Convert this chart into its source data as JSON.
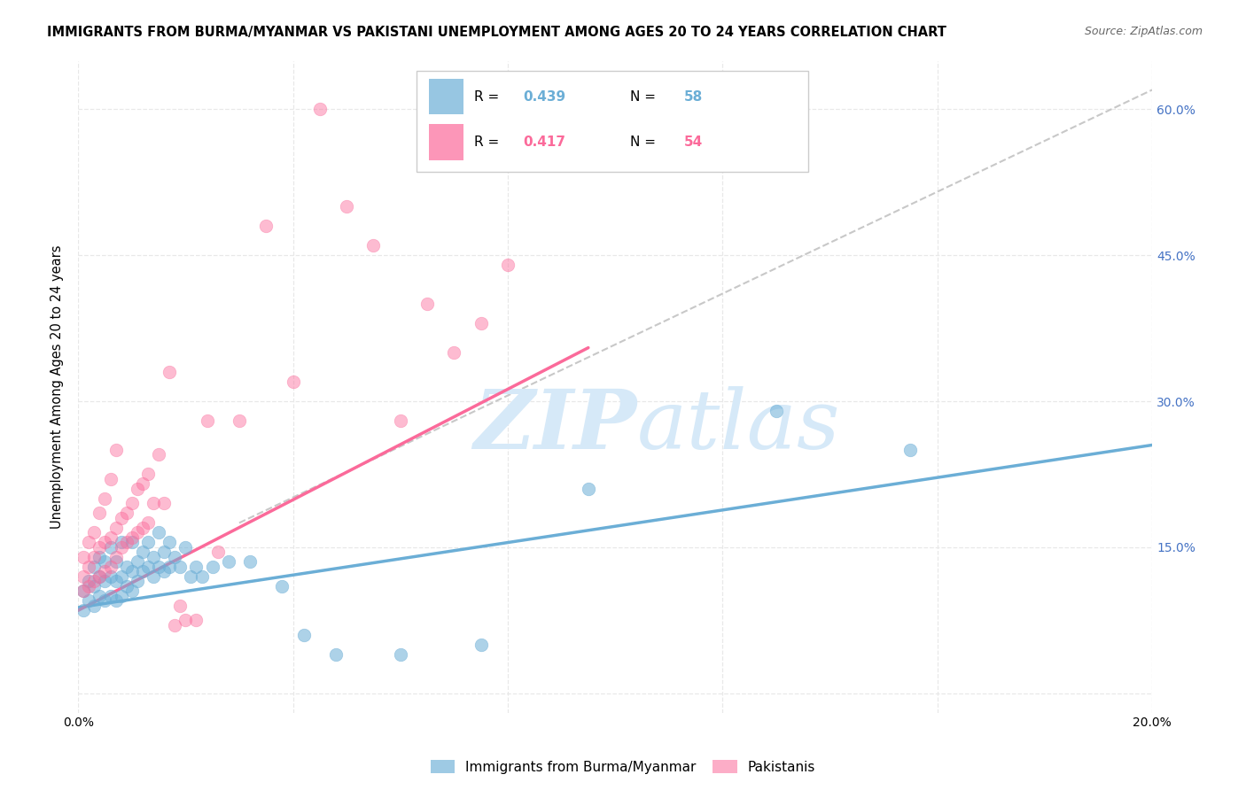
{
  "title": "IMMIGRANTS FROM BURMA/MYANMAR VS PAKISTANI UNEMPLOYMENT AMONG AGES 20 TO 24 YEARS CORRELATION CHART",
  "source": "Source: ZipAtlas.com",
  "ylabel": "Unemployment Among Ages 20 to 24 years",
  "xlim": [
    0.0,
    0.2
  ],
  "ylim": [
    -0.02,
    0.65
  ],
  "xticks": [
    0.0,
    0.04,
    0.08,
    0.12,
    0.16,
    0.2
  ],
  "xticklabels": [
    "0.0%",
    "",
    "",
    "",
    "",
    "20.0%"
  ],
  "yticks": [
    0.0,
    0.15,
    0.3,
    0.45,
    0.6
  ],
  "yticklabels_right": [
    "",
    "15.0%",
    "30.0%",
    "45.0%",
    "60.0%"
  ],
  "R_blue": 0.439,
  "N_blue": 58,
  "R_pink": 0.417,
  "N_pink": 54,
  "blue_scatter_x": [
    0.001,
    0.001,
    0.002,
    0.002,
    0.003,
    0.003,
    0.003,
    0.004,
    0.004,
    0.004,
    0.005,
    0.005,
    0.005,
    0.006,
    0.006,
    0.006,
    0.007,
    0.007,
    0.007,
    0.008,
    0.008,
    0.008,
    0.009,
    0.009,
    0.01,
    0.01,
    0.01,
    0.011,
    0.011,
    0.012,
    0.012,
    0.013,
    0.013,
    0.014,
    0.014,
    0.015,
    0.015,
    0.016,
    0.016,
    0.017,
    0.017,
    0.018,
    0.019,
    0.02,
    0.021,
    0.022,
    0.023,
    0.025,
    0.028,
    0.032,
    0.038,
    0.042,
    0.048,
    0.06,
    0.075,
    0.095,
    0.13,
    0.155
  ],
  "blue_scatter_y": [
    0.105,
    0.085,
    0.095,
    0.115,
    0.09,
    0.11,
    0.13,
    0.1,
    0.12,
    0.14,
    0.095,
    0.115,
    0.135,
    0.1,
    0.12,
    0.15,
    0.095,
    0.115,
    0.135,
    0.1,
    0.12,
    0.155,
    0.11,
    0.13,
    0.105,
    0.125,
    0.155,
    0.115,
    0.135,
    0.125,
    0.145,
    0.13,
    0.155,
    0.12,
    0.14,
    0.13,
    0.165,
    0.125,
    0.145,
    0.13,
    0.155,
    0.14,
    0.13,
    0.15,
    0.12,
    0.13,
    0.12,
    0.13,
    0.135,
    0.135,
    0.11,
    0.06,
    0.04,
    0.04,
    0.05,
    0.21,
    0.29,
    0.25
  ],
  "pink_scatter_x": [
    0.001,
    0.001,
    0.001,
    0.002,
    0.002,
    0.002,
    0.003,
    0.003,
    0.003,
    0.004,
    0.004,
    0.004,
    0.005,
    0.005,
    0.005,
    0.006,
    0.006,
    0.006,
    0.007,
    0.007,
    0.007,
    0.008,
    0.008,
    0.009,
    0.009,
    0.01,
    0.01,
    0.011,
    0.011,
    0.012,
    0.012,
    0.013,
    0.013,
    0.014,
    0.015,
    0.016,
    0.017,
    0.018,
    0.019,
    0.02,
    0.022,
    0.024,
    0.026,
    0.03,
    0.035,
    0.04,
    0.045,
    0.05,
    0.055,
    0.06,
    0.065,
    0.07,
    0.075,
    0.08
  ],
  "pink_scatter_y": [
    0.105,
    0.12,
    0.14,
    0.11,
    0.13,
    0.155,
    0.115,
    0.14,
    0.165,
    0.12,
    0.15,
    0.185,
    0.125,
    0.155,
    0.2,
    0.13,
    0.16,
    0.22,
    0.14,
    0.17,
    0.25,
    0.15,
    0.18,
    0.155,
    0.185,
    0.16,
    0.195,
    0.165,
    0.21,
    0.17,
    0.215,
    0.175,
    0.225,
    0.195,
    0.245,
    0.195,
    0.33,
    0.07,
    0.09,
    0.075,
    0.075,
    0.28,
    0.145,
    0.28,
    0.48,
    0.32,
    0.6,
    0.5,
    0.46,
    0.28,
    0.4,
    0.35,
    0.38,
    0.44
  ],
  "blue_line_x": [
    0.0,
    0.2
  ],
  "blue_line_y": [
    0.088,
    0.255
  ],
  "pink_line_x": [
    0.0,
    0.095
  ],
  "pink_line_y": [
    0.085,
    0.355
  ],
  "dashed_line_x": [
    0.03,
    0.2
  ],
  "dashed_line_y": [
    0.175,
    0.62
  ],
  "blue_color": "#6baed6",
  "pink_color": "#fb6a9a",
  "dashed_color": "#c8c8c8",
  "watermark_color": "#d6e9f8",
  "background_color": "#ffffff",
  "grid_color": "#e8e8e8",
  "legend_label_blue": "Immigrants from Burma/Myanmar",
  "legend_label_pink": "Pakistanis"
}
